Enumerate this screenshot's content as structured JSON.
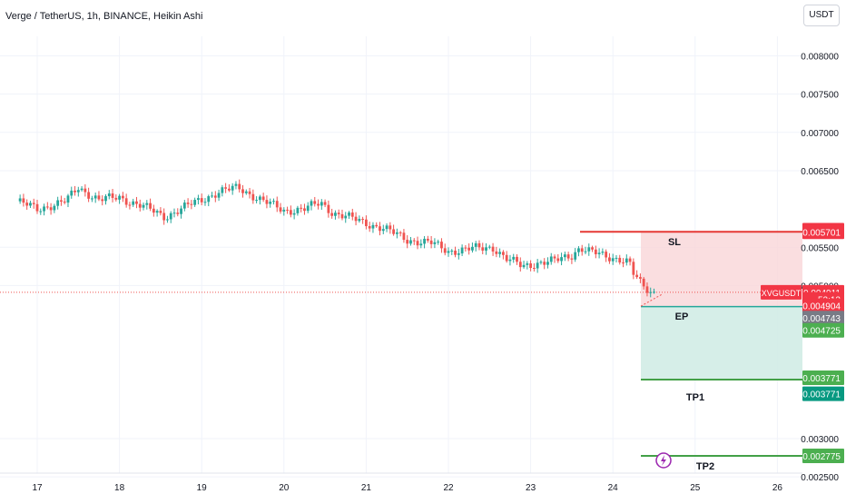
{
  "header": {
    "title": "Verge / TetherUS, 1h, BINANCE, Heikin Ashi",
    "currency_button": "USDT"
  },
  "chart_data": {
    "type": "candlestick",
    "symbol": "XVGUSDT",
    "y_ticks": [
      "0.008000",
      "0.007500",
      "0.007000",
      "0.006500",
      "0.005500",
      "0.005000",
      "0.003000",
      "0.002500"
    ],
    "x_ticks": [
      "17",
      "18",
      "19",
      "20",
      "21",
      "22",
      "23",
      "24",
      "25",
      "26"
    ],
    "price_anchors": [
      {
        "t": 16.75,
        "p": 0.0061
      },
      {
        "t": 17.0,
        "p": 0.006
      },
      {
        "t": 17.35,
        "p": 0.0061
      },
      {
        "t": 17.5,
        "p": 0.00628
      },
      {
        "t": 17.75,
        "p": 0.00612
      },
      {
        "t": 18.0,
        "p": 0.00615
      },
      {
        "t": 18.25,
        "p": 0.00605
      },
      {
        "t": 18.55,
        "p": 0.0059
      },
      {
        "t": 18.85,
        "p": 0.00605
      },
      {
        "t": 19.2,
        "p": 0.00622
      },
      {
        "t": 19.45,
        "p": 0.00628
      },
      {
        "t": 19.75,
        "p": 0.0061
      },
      {
        "t": 20.0,
        "p": 0.00598
      },
      {
        "t": 20.25,
        "p": 0.006
      },
      {
        "t": 20.45,
        "p": 0.00608
      },
      {
        "t": 20.6,
        "p": 0.00595
      },
      {
        "t": 20.9,
        "p": 0.00585
      },
      {
        "t": 21.2,
        "p": 0.00575
      },
      {
        "t": 21.5,
        "p": 0.0056
      },
      {
        "t": 21.8,
        "p": 0.00555
      },
      {
        "t": 22.0,
        "p": 0.00545
      },
      {
        "t": 22.3,
        "p": 0.00548
      },
      {
        "t": 22.55,
        "p": 0.0055
      },
      {
        "t": 22.7,
        "p": 0.00535
      },
      {
        "t": 22.9,
        "p": 0.00525
      },
      {
        "t": 23.1,
        "p": 0.0053
      },
      {
        "t": 23.3,
        "p": 0.00532
      },
      {
        "t": 23.5,
        "p": 0.0054
      },
      {
        "t": 23.6,
        "p": 0.0055
      },
      {
        "t": 23.7,
        "p": 0.00545
      },
      {
        "t": 23.9,
        "p": 0.00538
      },
      {
        "t": 24.1,
        "p": 0.00535
      },
      {
        "t": 24.2,
        "p": 0.0053
      },
      {
        "t": 24.25,
        "p": 0.00515
      },
      {
        "t": 24.35,
        "p": 0.005
      },
      {
        "t": 24.45,
        "p": 0.00492
      },
      {
        "t": 24.5,
        "p": 0.00491
      }
    ],
    "levels": [
      {
        "label": "SL",
        "price": 0.005701,
        "color": "#e53935"
      },
      {
        "label": "EP",
        "price": 0.004725,
        "color": "#26a69a"
      },
      {
        "label": "TP1",
        "price": 0.003771,
        "color": "#43a047"
      },
      {
        "label": "TP2",
        "price": 0.002775,
        "color": "#43a047"
      }
    ],
    "price_labels": [
      {
        "text": "0.005723",
        "price": 0.005723,
        "bg": "#f23645"
      },
      {
        "text": "0.005701",
        "price": 0.005701,
        "bg": "#f23645"
      },
      {
        "text": "0.004911",
        "price": 0.004911,
        "bg": "#f23645"
      },
      {
        "text": "52:12",
        "price": 0.00482,
        "bg": "#f23645"
      },
      {
        "text": "0.004904",
        "price": 0.004735,
        "bg": "#f23645"
      },
      {
        "text": "0.004743",
        "price": 0.004575,
        "bg": "#787b86"
      },
      {
        "text": "0.004725",
        "price": 0.004415,
        "bg": "#4caf50"
      },
      {
        "text": "0.003771",
        "price": 0.003795,
        "bg": "#4caf50"
      },
      {
        "text": "0.003771",
        "price": 0.003585,
        "bg": "#089981"
      },
      {
        "text": "0.002775",
        "price": 0.002775,
        "bg": "#4caf50"
      }
    ],
    "ticker_tag": "XVGUSDT",
    "current_price": 0.004911,
    "colors": {
      "up": "#26a69a",
      "down": "#ef5350",
      "grid": "#f0f3fa",
      "axis_text": "#131722",
      "short_zone": "#f9d6d8",
      "long_zone": "#d1ece6"
    }
  }
}
